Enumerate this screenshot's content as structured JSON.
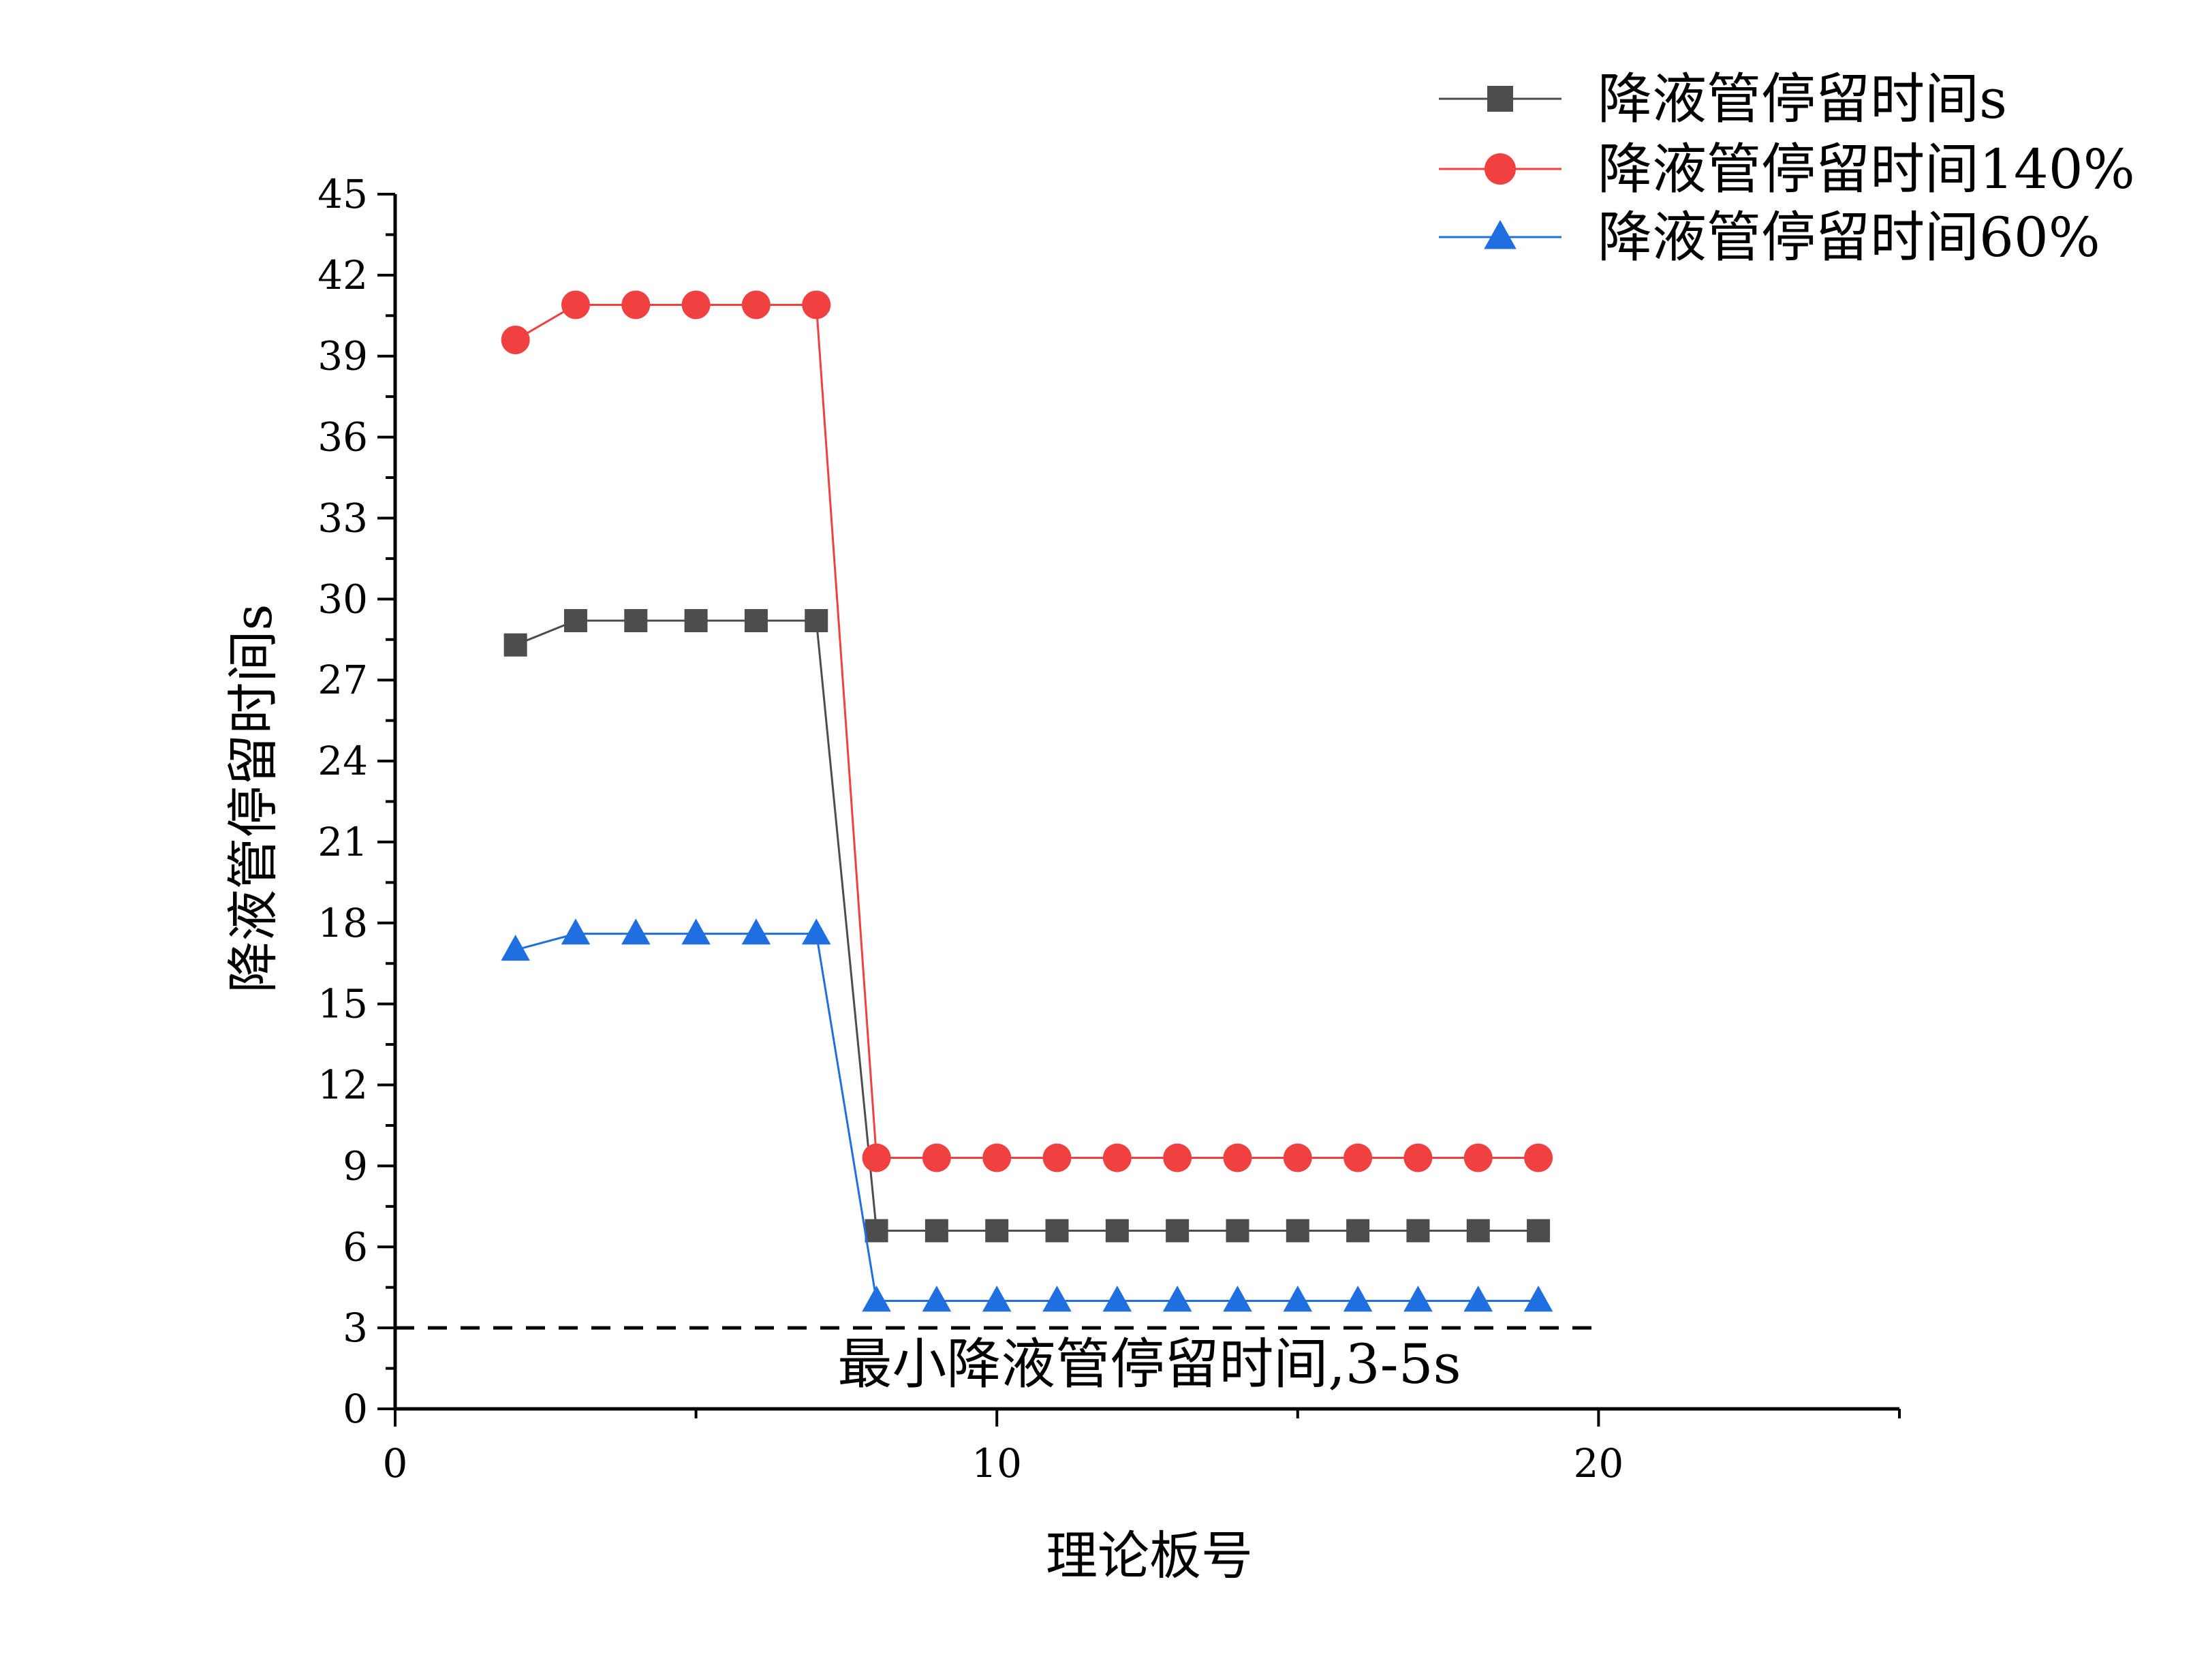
{
  "chart_data": {
    "type": "line",
    "title": "",
    "xlabel": "理论板号",
    "ylabel": "降液管停留时间s",
    "xlim": [
      0,
      25
    ],
    "ylim": [
      0,
      45
    ],
    "x_ticks": [
      "0",
      "10",
      "20"
    ],
    "y_ticks": [
      "0",
      "3",
      "6",
      "9",
      "12",
      "15",
      "18",
      "21",
      "24",
      "27",
      "30",
      "33",
      "36",
      "39",
      "42",
      "45"
    ],
    "x": [
      2,
      3,
      4,
      5,
      6,
      7,
      8,
      9,
      10,
      11,
      12,
      13,
      14,
      15,
      16,
      17,
      18,
      19
    ],
    "series": [
      {
        "name": "降液管停留时间s",
        "color": "#4d4d4d",
        "marker": "square",
        "values": [
          28.3,
          29.2,
          29.2,
          29.2,
          29.2,
          29.2,
          6.6,
          6.6,
          6.6,
          6.6,
          6.6,
          6.6,
          6.6,
          6.6,
          6.6,
          6.6,
          6.6,
          6.6
        ]
      },
      {
        "name": "降液管停留时间140%",
        "color": "#f04040",
        "marker": "circle",
        "values": [
          39.6,
          40.9,
          40.9,
          40.9,
          40.9,
          40.9,
          9.3,
          9.3,
          9.3,
          9.3,
          9.3,
          9.3,
          9.3,
          9.3,
          9.3,
          9.3,
          9.3,
          9.3
        ]
      },
      {
        "name": "降液管停留时间60%",
        "color": "#1f6fe0",
        "marker": "triangle",
        "values": [
          17.0,
          17.6,
          17.6,
          17.6,
          17.6,
          17.6,
          4.0,
          4.0,
          4.0,
          4.0,
          4.0,
          4.0,
          4.0,
          4.0,
          4.0,
          4.0,
          4.0,
          4.0
        ]
      }
    ],
    "reference_line": {
      "y": 3,
      "x_range": [
        0,
        20
      ],
      "style": "dashed",
      "color": "#000000",
      "label": "最小降液管停留时间,3-5s"
    },
    "legend": {
      "position": "top-right"
    },
    "grid": false
  }
}
